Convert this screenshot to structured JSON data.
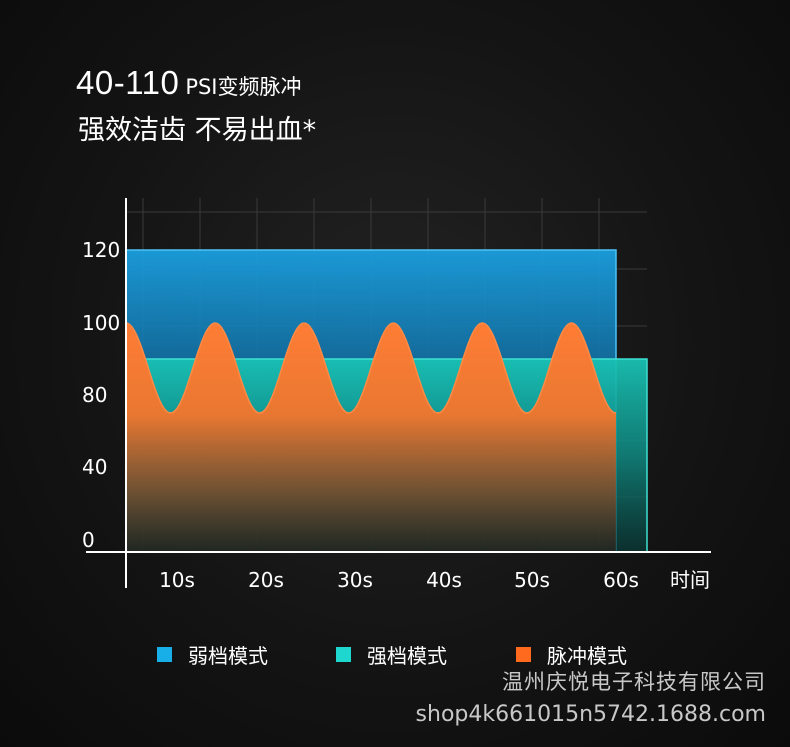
{
  "headline": {
    "range": "40-110",
    "unit_text": "PSI变频脉冲"
  },
  "subheadline": "强效洁齿 不易出血*",
  "chart_data": {
    "type": "area",
    "x_tick_labels": [
      "10s",
      "20s",
      "30s",
      "40s",
      "50s",
      "60s"
    ],
    "x_axis_label": "时间",
    "y_tick_labels": [
      "0",
      "40",
      "80",
      "100",
      "120"
    ],
    "series": [
      {
        "name": "弱档模式",
        "shape": "constant",
        "value": 120,
        "x_end": "60s",
        "color": "#1aa8e6"
      },
      {
        "name": "强档模式",
        "shape": "constant",
        "value": 90,
        "x_end": "after 60s",
        "color": "#18c8b8"
      },
      {
        "name": "脉冲模式",
        "shape": "sine",
        "min": 70,
        "max": 100,
        "peaks": 6,
        "x_end": "60s",
        "color": "#ff6a1a"
      }
    ]
  },
  "legend": [
    {
      "label": "弱档模式",
      "color": "#18aee8"
    },
    {
      "label": "强档模式",
      "color": "#1ed8cf"
    },
    {
      "label": "脉冲模式",
      "color": "#ff6a1e"
    }
  ],
  "watermark": {
    "company": "温州庆悦电子科技有限公司",
    "url": "shop4k661015n5742.1688.com"
  }
}
